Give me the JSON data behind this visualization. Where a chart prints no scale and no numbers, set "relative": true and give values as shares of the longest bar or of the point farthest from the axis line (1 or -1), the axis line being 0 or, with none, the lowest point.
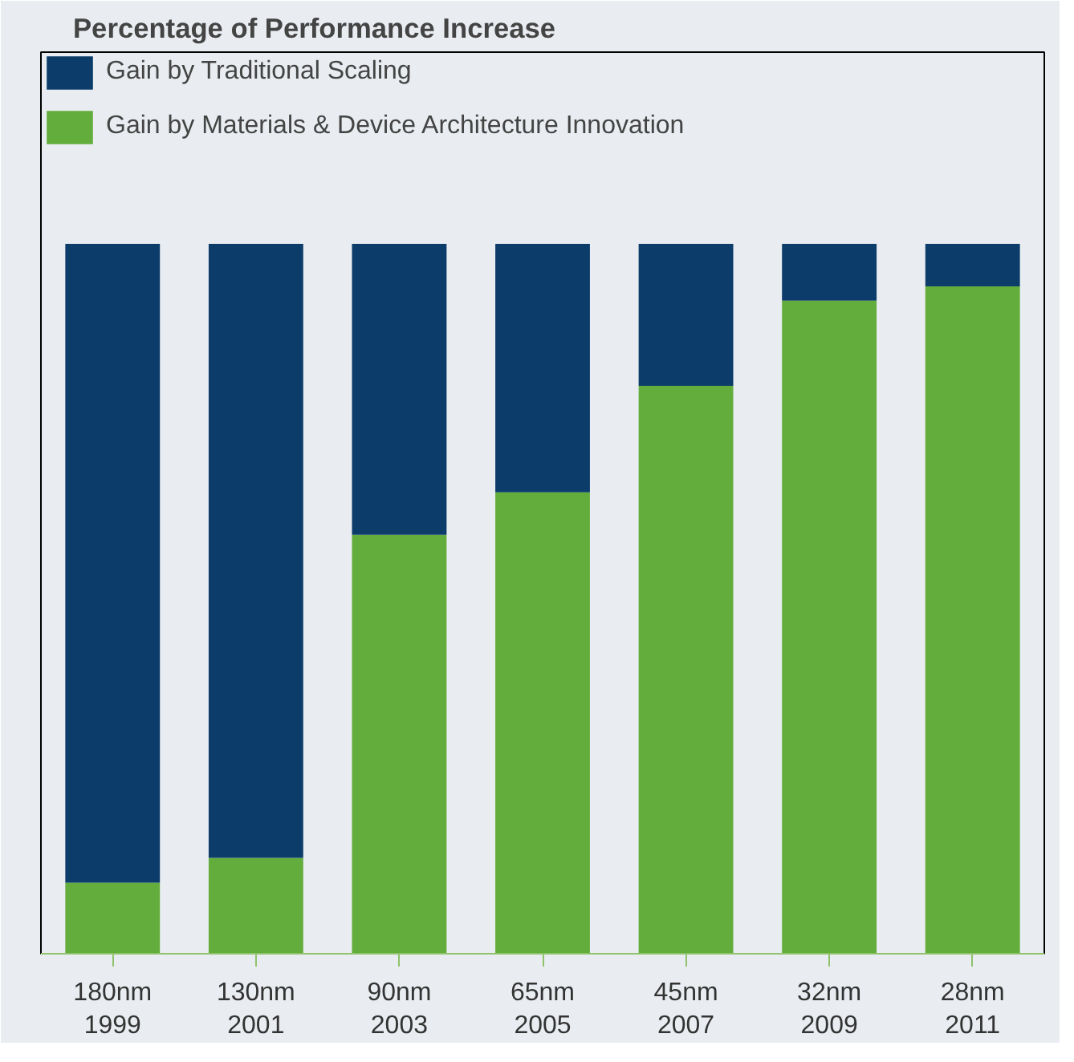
{
  "chart_data": {
    "type": "bar",
    "title": "Percentage of Performance Increase",
    "categories": [
      "180nm\n1999",
      "130nm\n2001",
      "90nm\n2003",
      "65nm\n2005",
      "45nm\n2007",
      "32nm\n2009",
      "28nm\n2011"
    ],
    "stacked": true,
    "relative": true,
    "legend": "top left",
    "grid": false,
    "series": [
      {
        "name": "Gain by Materials & Device Architecture Innovation",
        "color": "#62ad3c",
        "values": [
          0.1,
          0.135,
          0.59,
          0.65,
          0.8,
          0.92,
          0.94
        ]
      },
      {
        "name": "Gain by Traditional Scaling",
        "color": "#0b3c6a",
        "values": [
          0.9,
          0.865,
          0.41,
          0.35,
          0.2,
          0.08,
          0.06
        ]
      }
    ]
  }
}
